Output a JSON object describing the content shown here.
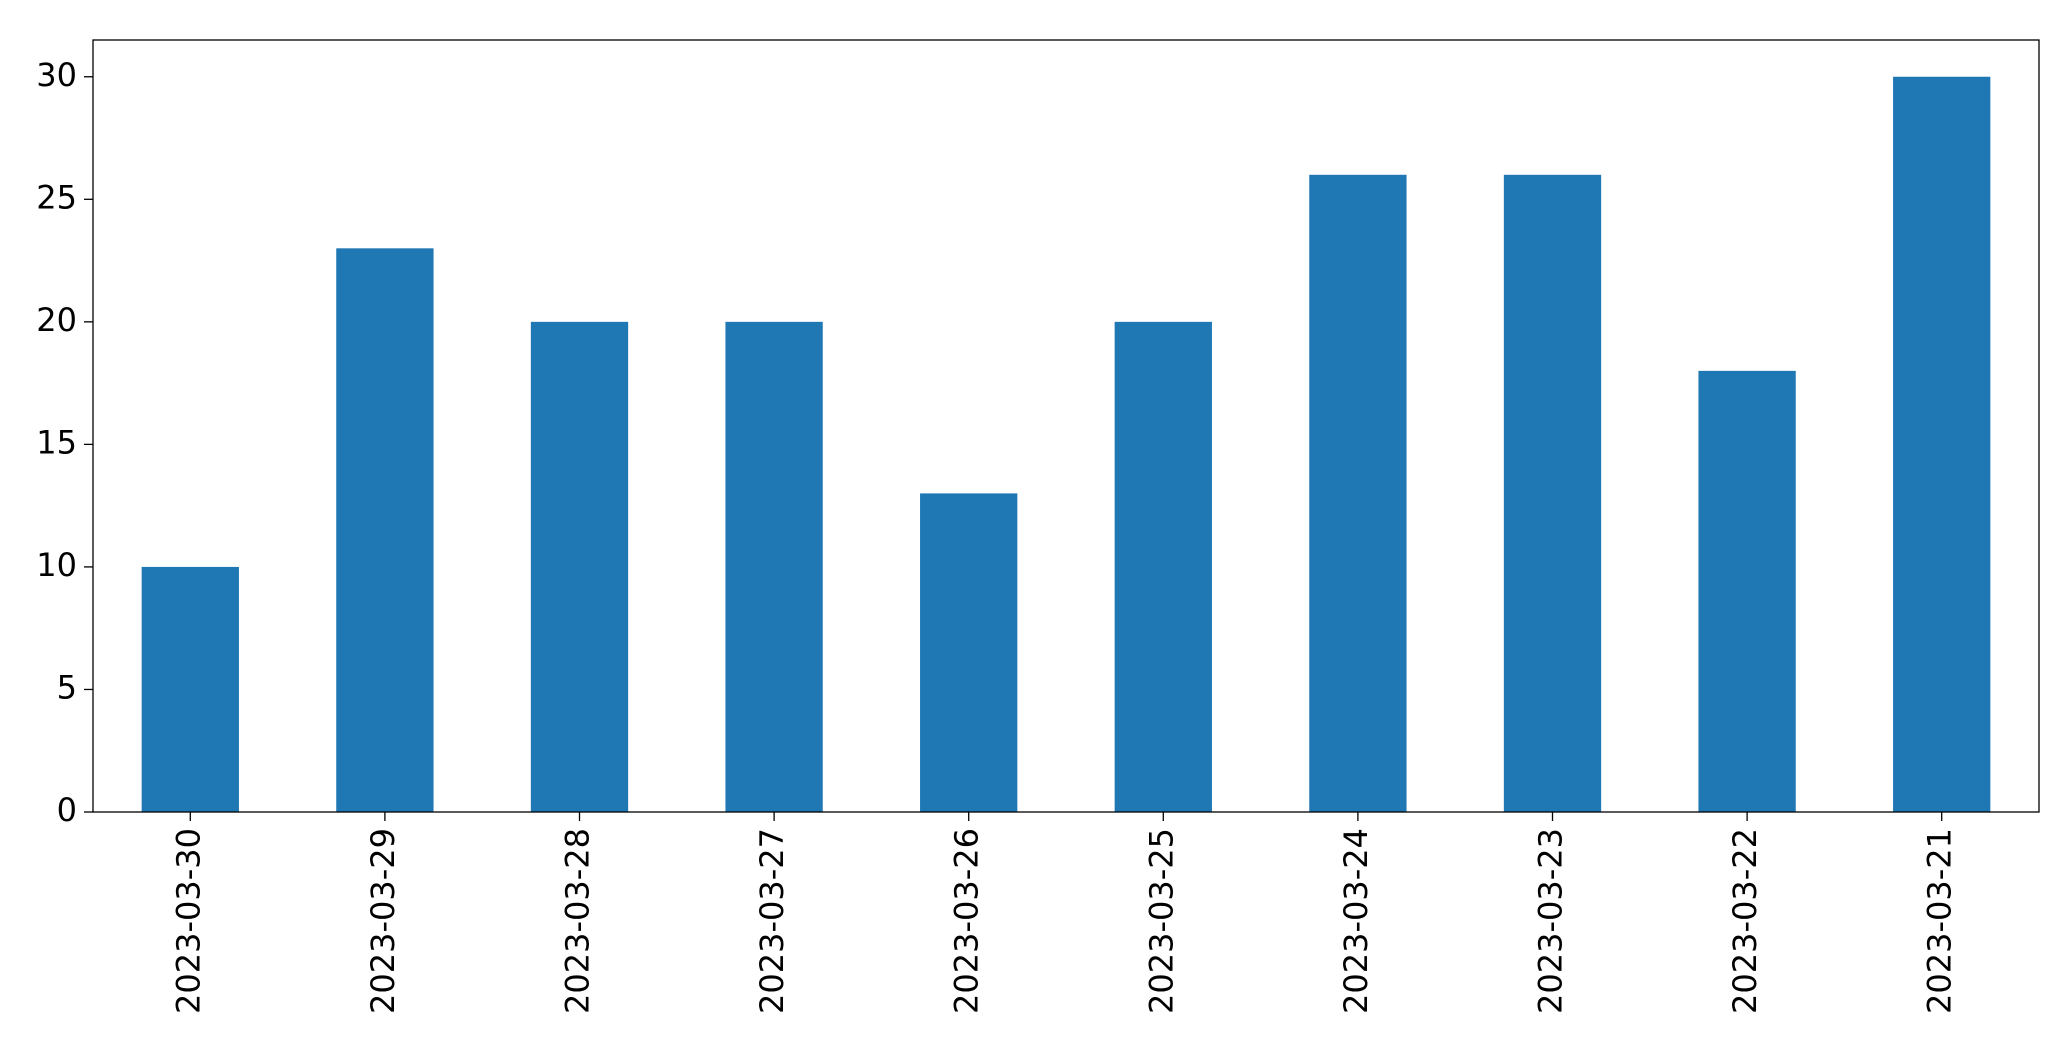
{
  "chart_data": {
    "type": "bar",
    "categories": [
      "2023-03-30",
      "2023-03-29",
      "2023-03-28",
      "2023-03-27",
      "2023-03-26",
      "2023-03-25",
      "2023-03-24",
      "2023-03-23",
      "2023-03-22",
      "2023-03-21"
    ],
    "values": [
      10,
      23,
      20,
      20,
      13,
      20,
      26,
      26,
      18,
      30
    ],
    "color": "#1f77b4",
    "ylim": [
      0,
      31.5
    ],
    "yticks": [
      0,
      5,
      10,
      15,
      20,
      25,
      30
    ],
    "grid": false
  }
}
